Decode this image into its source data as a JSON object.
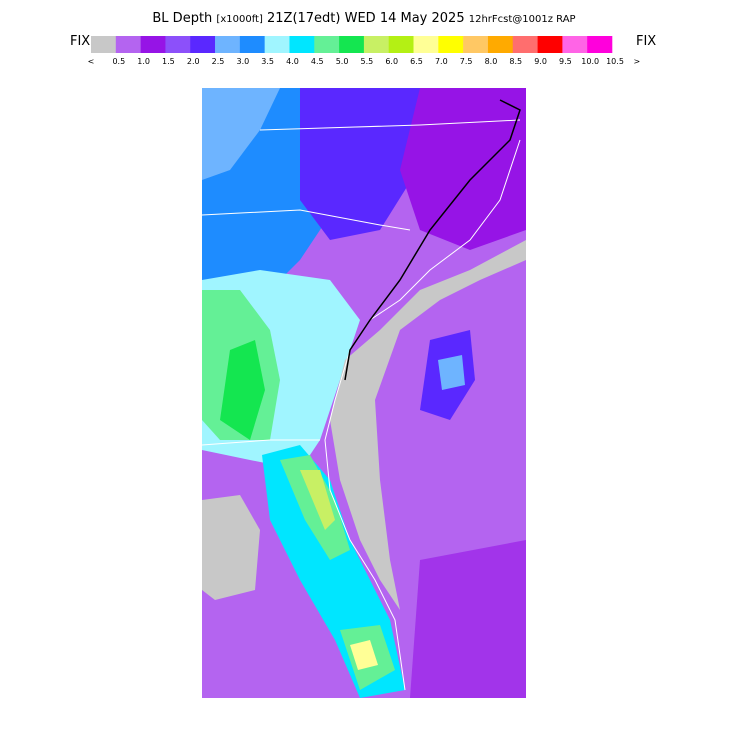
{
  "header": {
    "title": "BL Depth",
    "units": "[x1000ft]",
    "valid": "21Z(17edt) WED 14 May 2025",
    "run": "12hrFcst@1001z RAP"
  },
  "legend": {
    "left_label": "FIX",
    "right_label": "FIX",
    "colors": [
      "#c8c8c8",
      "#b464f0",
      "#9614e6",
      "#8c50fa",
      "#5a28ff",
      "#6eb4ff",
      "#1e8cff",
      "#a0f5ff",
      "#00e6ff",
      "#64f096",
      "#14e650",
      "#c8f064",
      "#b4f014",
      "#ffff96",
      "#ffff00",
      "#ffc864",
      "#ffaa00",
      "#ff6e6e",
      "#ff0000",
      "#ff64e6",
      "#ff00dc"
    ],
    "labels": [
      "<",
      "0.5",
      "1.0",
      "1.5",
      "2.0",
      "2.5",
      "3.0",
      "3.5",
      "4.0",
      "4.5",
      "5.0",
      "5.5",
      "6.0",
      "6.5",
      "7.0",
      "7.5",
      "8.0",
      "8.5",
      "9.0",
      "9.5",
      "10.0",
      "10.5",
      ">"
    ]
  }
}
